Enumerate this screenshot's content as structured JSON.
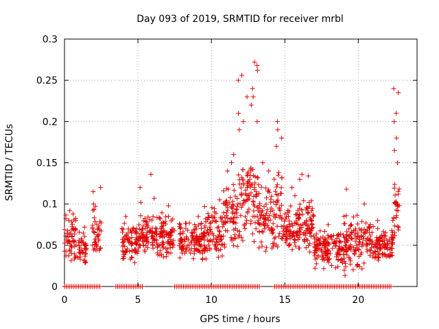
{
  "chart_data": {
    "type": "scatter",
    "title": "Day 093 of 2019, SRMTID for receiver mrbl",
    "xlabel": "GPS time / hours",
    "ylabel": "SRMTID / TECUs",
    "xlim": [
      0,
      24
    ],
    "ylim": [
      0,
      0.3
    ],
    "xticks": [
      0,
      5,
      10,
      15,
      20
    ],
    "xtick_labels": [
      "0",
      "5",
      "10",
      "15",
      "20"
    ],
    "yticks": [
      0,
      0.05,
      0.1,
      0.15,
      0.2,
      0.25,
      0.3
    ],
    "ytick_labels": [
      "0",
      "0.05",
      "0.1",
      "0.15",
      "0.2",
      "0.25",
      "0.3"
    ],
    "grid": true,
    "marker": "+",
    "series": [
      {
        "name": "SRMTID",
        "color": "#e00000",
        "clusters": [
          {
            "x_range": [
              0.0,
              0.8
            ],
            "y_range": [
              0.03,
              0.09
            ],
            "peaks": [
              0.092,
              0.088
            ]
          },
          {
            "x_range": [
              0.9,
              1.5
            ],
            "y_range": [
              0.025,
              0.07
            ],
            "peaks": [
              0.072
            ]
          },
          {
            "x_range": [
              1.9,
              2.5
            ],
            "y_range": [
              0.03,
              0.1
            ],
            "peaks": [
              0.12,
              0.115,
              0.1
            ]
          },
          {
            "x_range": [
              3.9,
              5.0
            ],
            "y_range": [
              0.025,
              0.08
            ],
            "peaks": [
              0.085
            ]
          },
          {
            "x_range": [
              5.0,
              6.0
            ],
            "y_range": [
              0.035,
              0.09
            ],
            "peaks": [
              0.136,
              0.12,
              0.102
            ]
          },
          {
            "x_range": [
              6.0,
              7.5
            ],
            "y_range": [
              0.03,
              0.09
            ],
            "peaks": [
              0.107,
              0.098
            ]
          },
          {
            "x_range": [
              7.8,
              9.5
            ],
            "y_range": [
              0.03,
              0.08
            ],
            "peaks": [
              0.085
            ]
          },
          {
            "x_range": [
              9.5,
              10.8
            ],
            "y_range": [
              0.03,
              0.1
            ],
            "peaks": [
              0.105
            ]
          },
          {
            "x_range": [
              10.8,
              11.8
            ],
            "y_range": [
              0.04,
              0.13
            ],
            "peaks": [
              0.16,
              0.15,
              0.14
            ]
          },
          {
            "x_range": [
              11.8,
              12.5
            ],
            "y_range": [
              0.05,
              0.16
            ],
            "peaks": [
              0.256,
              0.25,
              0.23,
              0.21,
              0.2,
              0.19
            ]
          },
          {
            "x_range": [
              12.5,
              13.2
            ],
            "y_range": [
              0.05,
              0.17
            ],
            "peaks": [
              0.272,
              0.268,
              0.262,
              0.24,
              0.23,
              0.22,
              0.2
            ]
          },
          {
            "x_range": [
              13.2,
              14.2
            ],
            "y_range": [
              0.04,
              0.13
            ],
            "peaks": [
              0.15,
              0.14
            ]
          },
          {
            "x_range": [
              14.2,
              14.8
            ],
            "y_range": [
              0.04,
              0.14
            ],
            "peaks": [
              0.2,
              0.19,
              0.18,
              0.17
            ]
          },
          {
            "x_range": [
              14.8,
              16.0
            ],
            "y_range": [
              0.04,
              0.1
            ],
            "peaks": [
              0.12,
              0.11
            ]
          },
          {
            "x_range": [
              16.0,
              17.0
            ],
            "y_range": [
              0.04,
              0.11
            ],
            "peaks": [
              0.136,
              0.134,
              0.13
            ]
          },
          {
            "x_range": [
              17.0,
              19.0
            ],
            "y_range": [
              0.02,
              0.07
            ],
            "peaks": [
              0.075
            ]
          },
          {
            "x_range": [
              19.0,
              20.5
            ],
            "y_range": [
              0.01,
              0.09
            ],
            "peaks": [
              0.118,
              0.1
            ]
          },
          {
            "x_range": [
              20.5,
              21.8
            ],
            "y_range": [
              0.03,
              0.08
            ],
            "peaks": [
              0.08
            ]
          },
          {
            "x_range": [
              21.8,
              22.4
            ],
            "y_range": [
              0.03,
              0.07
            ],
            "peaks": [
              0.08
            ]
          },
          {
            "x_range": [
              22.4,
              22.8
            ],
            "y_range": [
              0.05,
              0.13
            ],
            "peaks": [
              0.24,
              0.235,
              0.21,
              0.2,
              0.18,
              0.165,
              0.15
            ]
          }
        ],
        "zero_band": [
          {
            "x_range": [
              0.0,
              2.5
            ]
          },
          {
            "x_range": [
              3.5,
              5.4
            ]
          },
          {
            "x_range": [
              7.5,
              13.3
            ]
          },
          {
            "x_range": [
              14.3,
              22.3
            ]
          }
        ]
      }
    ]
  }
}
